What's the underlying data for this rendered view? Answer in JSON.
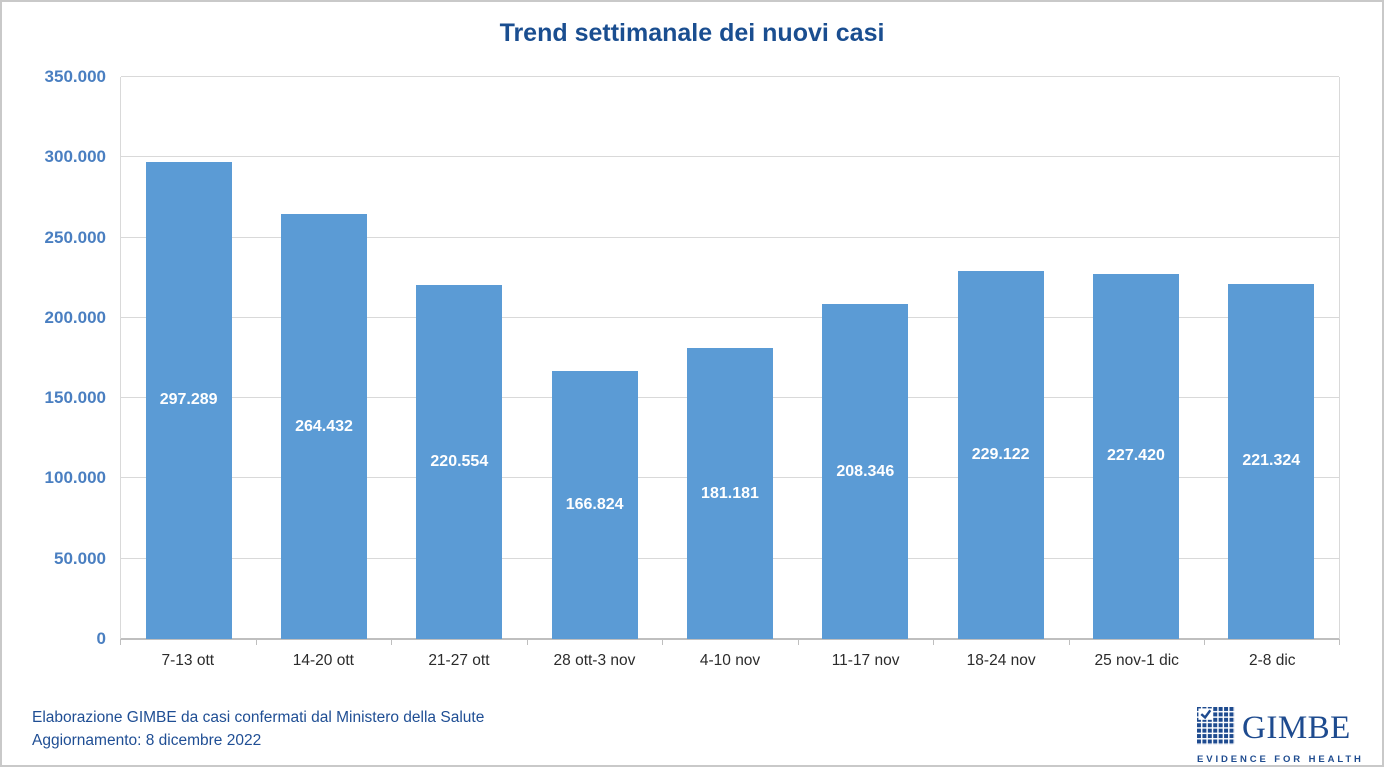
{
  "chart_data": {
    "type": "bar",
    "title": "Trend settimanale dei nuovi casi",
    "categories": [
      "7-13 ott",
      "14-20 ott",
      "21-27 ott",
      "28 ott-3 nov",
      "4-10 nov",
      "11-17 nov",
      "18-24 nov",
      "25 nov-1 dic",
      "2-8 dic"
    ],
    "values": [
      297289,
      264432,
      220554,
      166824,
      181181,
      208346,
      229122,
      227420,
      221324
    ],
    "value_labels": [
      "297.289",
      "264.432",
      "220.554",
      "166.824",
      "181.181",
      "208.346",
      "229.122",
      "227.420",
      "221.324"
    ],
    "xlabel": "",
    "ylabel": "",
    "ylim": [
      0,
      350000
    ],
    "ytick_values": [
      0,
      50000,
      100000,
      150000,
      200000,
      250000,
      300000,
      350000
    ],
    "ytick_labels": [
      "0",
      "50.000",
      "100.000",
      "150.000",
      "200.000",
      "250.000",
      "300.000",
      "350.000"
    ],
    "grid": true,
    "legend": false,
    "bar_label_position": "center"
  },
  "footer": {
    "line1": "Elaborazione GIMBE da casi confermati dal Ministero della Salute",
    "line2": "Aggiornamento: 8 dicembre 2022"
  },
  "logo": {
    "name": "GIMBE",
    "tagline": "EVIDENCE FOR HEALTH"
  },
  "colors": {
    "title": "#1A4E90",
    "axis_labels": "#4A7FC1",
    "bar": "#5B9BD5",
    "bar_label": "#FFFFFF",
    "x_labels": "#2B2B2B",
    "gridline": "#D9D9D9",
    "axis_line": "#BFBFBF",
    "footer": "#1F4E94",
    "logo": "#1E4B8F",
    "frame": "#C9C9C9"
  }
}
